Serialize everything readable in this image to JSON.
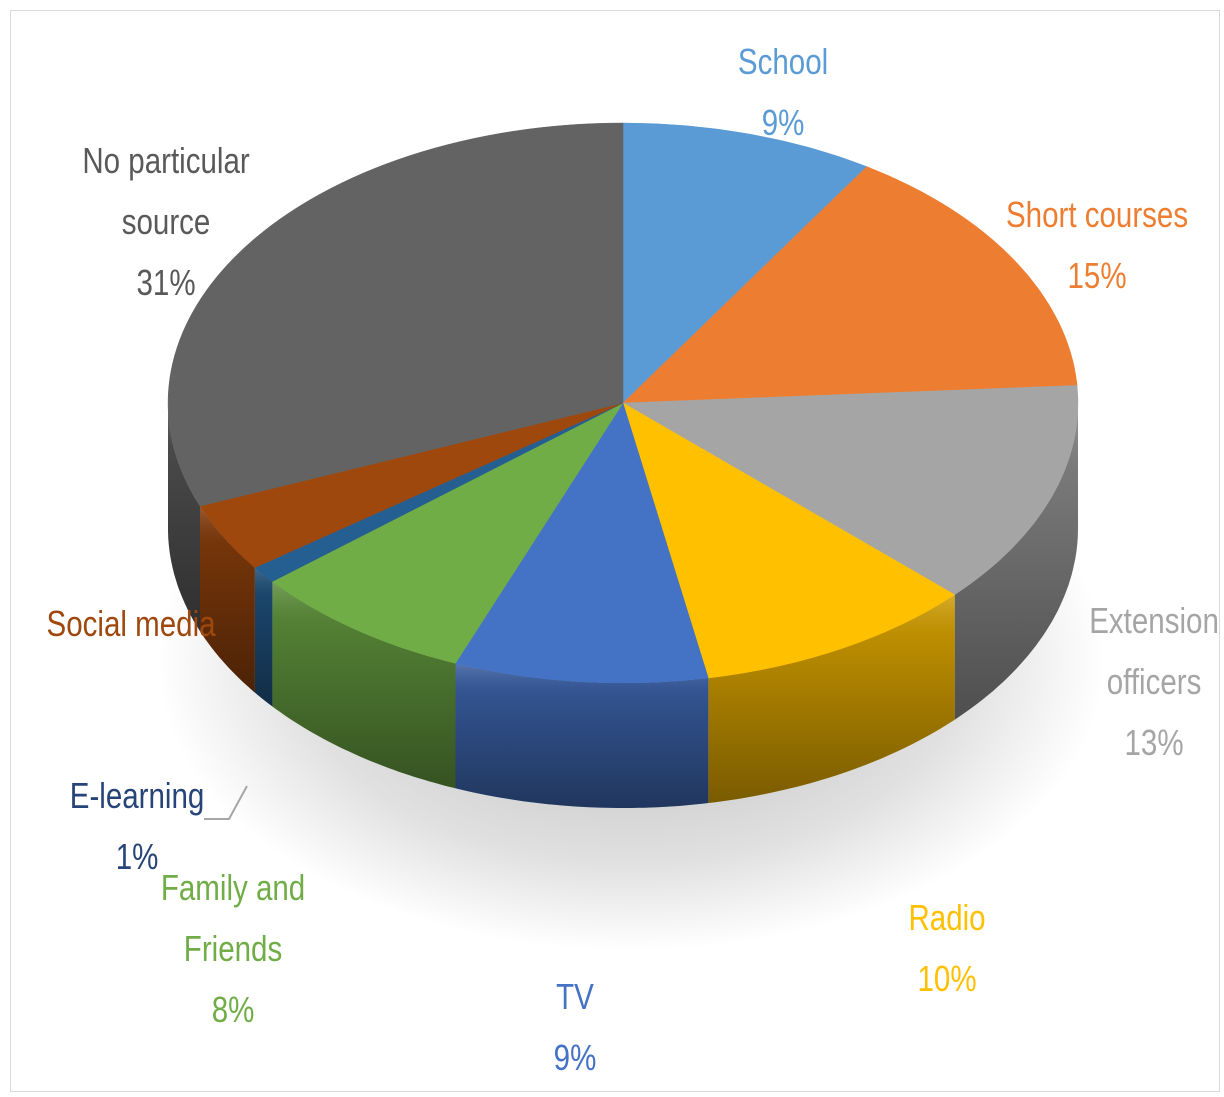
{
  "chart_data": {
    "type": "pie",
    "title": "",
    "slices": [
      {
        "name": "School",
        "label_lines": [
          "School"
        ],
        "value": 9,
        "value_label": "9%",
        "color": "#5B9BD5",
        "label_color": "#5B9BD5"
      },
      {
        "name": "Short courses",
        "label_lines": [
          "Short courses"
        ],
        "value": 15,
        "value_label": "15%",
        "color": "#ED7D31",
        "label_color": "#ED7D31"
      },
      {
        "name": "Extension officers",
        "label_lines": [
          "Extension",
          "officers"
        ],
        "value": 13,
        "value_label": "13%",
        "color": "#A5A5A5",
        "label_color": "#A5A5A5"
      },
      {
        "name": "Radio",
        "label_lines": [
          "Radio"
        ],
        "value": 10,
        "value_label": "10%",
        "color": "#FFC000",
        "label_color": "#FFC000"
      },
      {
        "name": "TV",
        "label_lines": [
          "TV"
        ],
        "value": 9,
        "value_label": "9%",
        "color": "#4472C4",
        "label_color": "#4472C4"
      },
      {
        "name": "Family and Friends",
        "label_lines": [
          "Family and",
          "Friends"
        ],
        "value": 8,
        "value_label": "8%",
        "color": "#70AD47",
        "label_color": "#70AD47"
      },
      {
        "name": "E-learning",
        "label_lines": [
          "E-learning"
        ],
        "value": 1,
        "value_label": "1%",
        "color": "#255E91",
        "label_color": "#264478"
      },
      {
        "name": "Social media",
        "label_lines": [
          "Social media"
        ],
        "value": 4,
        "value_label": "",
        "color": "#9E480E",
        "label_color": "#9E480E"
      },
      {
        "name": "No particular source",
        "label_lines": [
          "No particular",
          "source"
        ],
        "value": 31,
        "value_label": "31%",
        "color": "#636363",
        "label_color": "#595959"
      }
    ],
    "style": "3d-pie",
    "legend": "none"
  }
}
